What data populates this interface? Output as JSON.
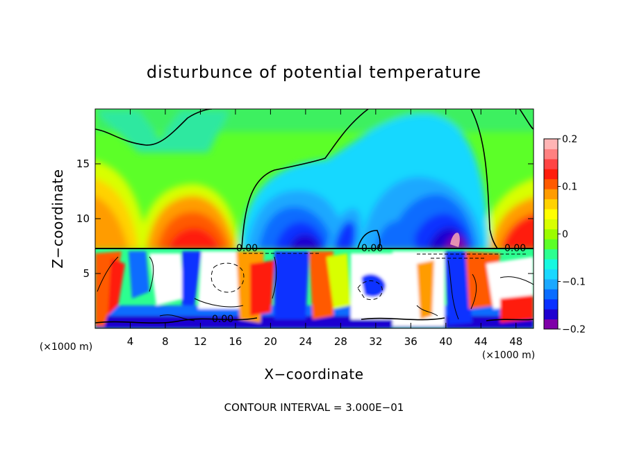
{
  "chart_data": {
    "type": "heatmap",
    "title": "disturbunce of potential temperature",
    "xlabel": "X−coordinate",
    "ylabel": "Z−coordinate",
    "x_unit_left": "(×1000 m)",
    "x_unit_right": "(×1000 m)",
    "xlim": [
      0,
      50
    ],
    "ylim": [
      0,
      20
    ],
    "x_ticks": [
      "4",
      "8",
      "12",
      "16",
      "20",
      "24",
      "28",
      "32",
      "36",
      "40",
      "44",
      "48"
    ],
    "y_ticks": [
      "5",
      "10",
      "15"
    ],
    "colorbar": {
      "range": [
        -0.2,
        0.2
      ],
      "tick_labels": [
        "0.2",
        "0.1",
        "0",
        "−0.1",
        "−0.2"
      ],
      "colors": [
        "#7f00a8",
        "#1f00d0",
        "#0a30ff",
        "#0a6cff",
        "#1aa8ff",
        "#19d8ff",
        "#16f8e0",
        "#2cff90",
        "#5cff28",
        "#9cfc00",
        "#d8ff00",
        "#ffff00",
        "#ffd200",
        "#ff9c00",
        "#ff5a00",
        "#ff1c0c",
        "#ff4444",
        "#ff8080",
        "#ffb4b4"
      ]
    },
    "contour_labels": [
      "0.00",
      "0.00",
      "0.00",
      "0.00"
    ],
    "footer": "CONTOUR INTERVAL = 3.000E−01"
  }
}
